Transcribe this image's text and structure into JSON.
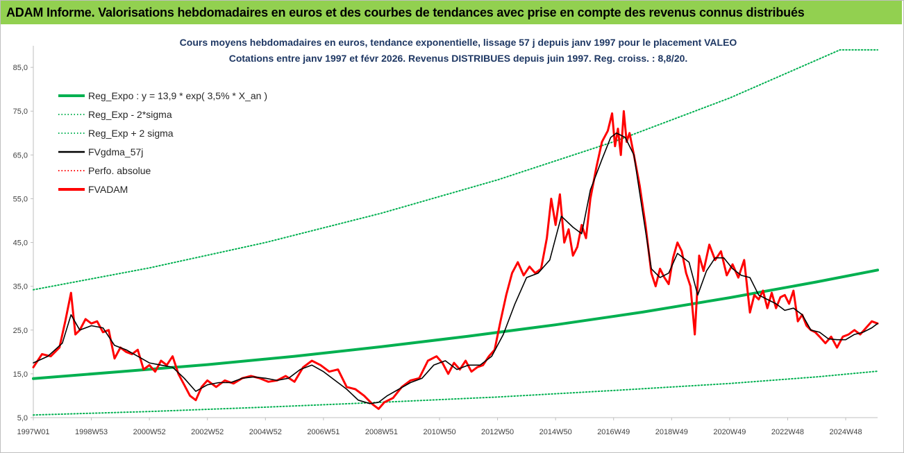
{
  "header": {
    "title": "ADAM Informe. Valorisations hebdomadaires en euros et des courbes de tendances avec prise en compte des revenus connus distribués",
    "banner_color": "#92d050"
  },
  "chart_data": {
    "type": "line",
    "title_line1": "Cours moyens hebdomadaires en euros, tendance exponentielle, lissage 57 j depuis janv 1997 pour le placement VALEO",
    "title_line2": "Cotations entre janv 1997 et févr 2026. Revenus DISTRIBUES depuis juin 1997.  Reg. croiss. : 8,8/20.",
    "xlabel": "",
    "ylabel": "",
    "x_range": [
      1997.0,
      2026.1
    ],
    "ylim": [
      5,
      89
    ],
    "y_ticks": [
      "85,0",
      "75,0",
      "65,0",
      "55,0",
      "45,0",
      "35,0",
      "25,0",
      "15,0",
      "5,0"
    ],
    "y_tick_values": [
      85,
      75,
      65,
      55,
      45,
      35,
      25,
      15,
      5
    ],
    "x_ticks": [
      "1997W01",
      "1998W53",
      "2000W52",
      "2002W52",
      "2004W52",
      "2006W51",
      "2008W51",
      "2010W50",
      "2012W50",
      "2014W50",
      "2016W49",
      "2018W49",
      "2020W49",
      "2022W48",
      "2024W48"
    ],
    "x_tick_values": [
      1997.0,
      1999.0,
      2001.0,
      2003.0,
      2005.0,
      2007.0,
      2009.0,
      2011.0,
      2013.0,
      2015.0,
      2017.0,
      2019.0,
      2021.0,
      2023.0,
      2025.0
    ],
    "grid": false,
    "legend_position": "top-left",
    "series": [
      {
        "name": "Reg_Expo : y = 13,9 * exp( 3,5% *  X_an )",
        "style": "solid-thick",
        "color": "#00b050",
        "x": [
          1997,
          2000,
          2003,
          2006,
          2009,
          2012,
          2015,
          2018,
          2021,
          2024,
          2026.1
        ],
        "y": [
          13.9,
          15.5,
          17.1,
          19.0,
          21.2,
          23.6,
          26.2,
          29.1,
          32.4,
          36.0,
          38.7
        ]
      },
      {
        "name": "Reg_Exp - 2*sigma",
        "style": "dotted",
        "color": "#00b050",
        "x": [
          1997,
          2001,
          2005,
          2009,
          2013,
          2017,
          2021,
          2024.8,
          2026.1
        ],
        "y": [
          34.2,
          39.2,
          45.0,
          51.7,
          59.3,
          68.0,
          78.0,
          89.0,
          89.0
        ]
      },
      {
        "name": "Reg_Exp + 2 sigma",
        "style": "dotted",
        "color": "#00b050",
        "x": [
          1997,
          2001,
          2005,
          2009,
          2013,
          2017,
          2021,
          2024,
          2026.1
        ],
        "y": [
          5.6,
          6.4,
          7.4,
          8.5,
          9.7,
          11.2,
          12.8,
          14.3,
          15.6
        ]
      },
      {
        "name": "FVgdma_57j",
        "style": "solid",
        "color": "#000000",
        "x": [
          1997.0,
          1997.5,
          1998.0,
          1998.3,
          1998.6,
          1999.0,
          1999.4,
          1999.8,
          2000.2,
          2000.6,
          2001.0,
          2001.4,
          2001.8,
          2002.2,
          2002.6,
          2003.0,
          2003.4,
          2003.8,
          2004.2,
          2004.6,
          2005.0,
          2005.4,
          2005.8,
          2006.2,
          2006.6,
          2007.0,
          2007.4,
          2007.8,
          2008.2,
          2008.6,
          2008.9,
          2009.2,
          2009.6,
          2010.0,
          2010.4,
          2010.8,
          2011.2,
          2011.6,
          2012.0,
          2012.4,
          2012.8,
          2013.2,
          2013.6,
          2014.0,
          2014.4,
          2014.8,
          2015.2,
          2015.6,
          2015.9,
          2016.2,
          2016.6,
          2016.9,
          2017.1,
          2017.4,
          2017.7,
          2018.0,
          2018.3,
          2018.6,
          2018.9,
          2019.2,
          2019.6,
          2019.9,
          2020.2,
          2020.5,
          2020.8,
          2021.1,
          2021.4,
          2021.7,
          2022.0,
          2022.3,
          2022.6,
          2022.9,
          2023.2,
          2023.5,
          2023.8,
          2024.1,
          2024.4,
          2024.7,
          2025.0,
          2025.3,
          2025.6,
          2025.9,
          2026.1
        ],
        "y": [
          17.5,
          19.0,
          22.0,
          28.5,
          25.0,
          26.0,
          25.5,
          21.5,
          20.5,
          19.0,
          17.5,
          17.0,
          16.5,
          14.0,
          11.0,
          12.5,
          13.0,
          13.0,
          14.0,
          14.3,
          14.0,
          13.5,
          14.0,
          16.0,
          17.0,
          15.5,
          13.5,
          11.5,
          9.0,
          8.2,
          8.5,
          10.0,
          11.5,
          13.0,
          14.0,
          17.0,
          18.0,
          16.0,
          17.0,
          17.0,
          19.0,
          24.0,
          31.0,
          37.0,
          38.0,
          41.0,
          51.0,
          48.5,
          47.0,
          57.0,
          64.0,
          69.0,
          70.0,
          69.0,
          65.0,
          52.0,
          39.0,
          37.0,
          38.0,
          42.5,
          40.5,
          33.0,
          38.5,
          41.5,
          41.5,
          39.0,
          37.5,
          37.0,
          33.0,
          32.0,
          31.0,
          29.5,
          30.0,
          28.5,
          25.0,
          24.5,
          23.0,
          22.8,
          22.8,
          24.0,
          24.5,
          25.5,
          26.5
        ]
      },
      {
        "name": "Perfo. absolue",
        "style": "dotted",
        "color": "#ff0000",
        "x": [],
        "y": []
      },
      {
        "name": "FVADAM",
        "style": "solid-thick",
        "color": "#ff0000",
        "x": [
          1997.0,
          1997.3,
          1997.6,
          1997.9,
          1998.1,
          1998.3,
          1998.45,
          1998.6,
          1998.8,
          1999.0,
          1999.2,
          1999.4,
          1999.6,
          1999.8,
          2000.0,
          2000.2,
          2000.4,
          2000.6,
          2000.8,
          2001.0,
          2001.2,
          2001.4,
          2001.6,
          2001.8,
          2002.0,
          2002.2,
          2002.4,
          2002.6,
          2002.8,
          2003.0,
          2003.3,
          2003.6,
          2003.9,
          2004.2,
          2004.5,
          2004.8,
          2005.1,
          2005.4,
          2005.7,
          2006.0,
          2006.3,
          2006.6,
          2006.9,
          2007.2,
          2007.5,
          2007.8,
          2008.1,
          2008.4,
          2008.7,
          2008.9,
          2009.1,
          2009.4,
          2009.7,
          2010.0,
          2010.3,
          2010.6,
          2010.9,
          2011.1,
          2011.3,
          2011.5,
          2011.7,
          2011.9,
          2012.1,
          2012.3,
          2012.5,
          2012.7,
          2012.9,
          2013.1,
          2013.3,
          2013.5,
          2013.7,
          2013.9,
          2014.1,
          2014.3,
          2014.5,
          2014.7,
          2014.85,
          2015.0,
          2015.15,
          2015.3,
          2015.45,
          2015.6,
          2015.75,
          2015.9,
          2016.05,
          2016.2,
          2016.4,
          2016.6,
          2016.8,
          2016.95,
          2017.05,
          2017.15,
          2017.25,
          2017.35,
          2017.45,
          2017.55,
          2017.7,
          2017.9,
          2018.1,
          2018.3,
          2018.45,
          2018.6,
          2018.75,
          2018.9,
          2019.05,
          2019.2,
          2019.35,
          2019.5,
          2019.65,
          2019.8,
          2019.95,
          2020.1,
          2020.3,
          2020.5,
          2020.7,
          2020.9,
          2021.1,
          2021.3,
          2021.5,
          2021.7,
          2021.85,
          2022.0,
          2022.15,
          2022.3,
          2022.45,
          2022.6,
          2022.75,
          2022.9,
          2023.05,
          2023.2,
          2023.35,
          2023.5,
          2023.65,
          2023.8,
          2023.95,
          2024.1,
          2024.3,
          2024.5,
          2024.7,
          2024.9,
          2025.1,
          2025.3,
          2025.5,
          2025.7,
          2025.9,
          2026.1
        ],
        "y": [
          16.5,
          19.5,
          19.0,
          21.0,
          27.0,
          33.5,
          24.0,
          25.0,
          27.5,
          26.5,
          27.0,
          24.5,
          25.0,
          18.5,
          21.0,
          20.0,
          19.5,
          20.5,
          16.0,
          17.0,
          15.5,
          18.0,
          17.0,
          19.0,
          15.0,
          12.5,
          10.0,
          9.0,
          12.0,
          13.5,
          12.0,
          13.5,
          12.8,
          14.0,
          14.5,
          14.0,
          13.2,
          13.5,
          14.5,
          13.2,
          16.5,
          18.0,
          17.0,
          15.5,
          16.0,
          12.0,
          11.5,
          10.0,
          8.0,
          7.0,
          8.5,
          9.5,
          12.0,
          13.5,
          14.0,
          18.0,
          19.0,
          17.5,
          15.0,
          17.5,
          16.0,
          18.0,
          15.5,
          16.5,
          17.0,
          19.0,
          20.5,
          27.0,
          33.0,
          38.0,
          40.5,
          37.5,
          39.5,
          38.0,
          39.0,
          46.0,
          55.0,
          49.0,
          56.0,
          45.0,
          48.0,
          42.0,
          44.0,
          49.0,
          46.0,
          55.0,
          62.0,
          68.0,
          70.5,
          74.5,
          67.0,
          71.0,
          65.0,
          75.0,
          68.0,
          70.0,
          65.0,
          58.0,
          49.0,
          38.0,
          35.0,
          39.0,
          37.0,
          35.5,
          41.5,
          45.0,
          43.0,
          38.0,
          35.0,
          24.0,
          42.0,
          38.5,
          44.5,
          41.0,
          43.0,
          37.5,
          40.0,
          37.0,
          41.0,
          29.0,
          33.0,
          32.0,
          34.0,
          30.0,
          33.5,
          30.0,
          32.5,
          33.0,
          31.0,
          34.0,
          27.0,
          28.5,
          26.0,
          25.0,
          24.5,
          23.5,
          22.0,
          23.5,
          21.0,
          23.5,
          24.0,
          25.0,
          24.0,
          25.5,
          27.0,
          26.5
        ]
      }
    ]
  }
}
